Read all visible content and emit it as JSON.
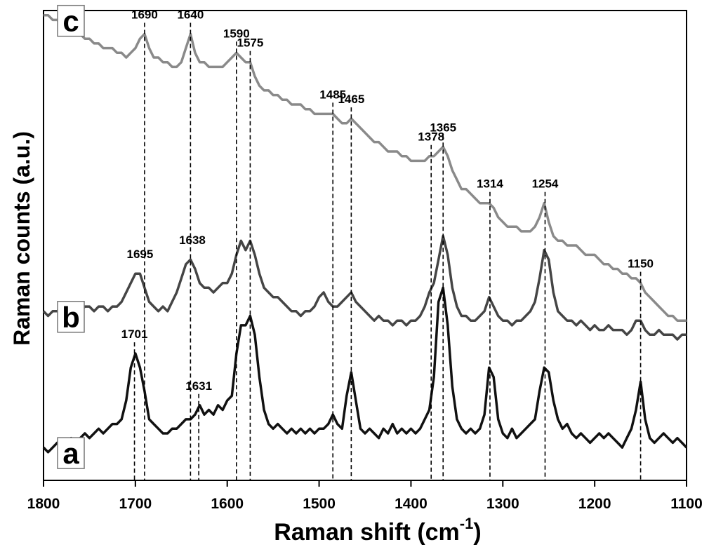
{
  "chart_data": {
    "type": "line",
    "x_label": {
      "text": "Raman shift (cm",
      "sup": "-1",
      "tail": ")"
    },
    "y_label": "Raman counts (a.u.)",
    "xlim": [
      1800,
      1100
    ],
    "xticks": [
      1800,
      1700,
      1600,
      1500,
      1400,
      1300,
      1200,
      1100
    ],
    "ylim": [
      0,
      100
    ],
    "x": [
      1800,
      1795,
      1790,
      1785,
      1780,
      1775,
      1770,
      1765,
      1760,
      1755,
      1750,
      1745,
      1740,
      1735,
      1730,
      1725,
      1720,
      1715,
      1710,
      1705,
      1700,
      1695,
      1690,
      1685,
      1680,
      1675,
      1670,
      1665,
      1660,
      1655,
      1650,
      1645,
      1640,
      1635,
      1630,
      1625,
      1620,
      1615,
      1610,
      1605,
      1600,
      1595,
      1590,
      1585,
      1580,
      1575,
      1570,
      1565,
      1560,
      1555,
      1550,
      1545,
      1540,
      1535,
      1530,
      1525,
      1520,
      1515,
      1510,
      1505,
      1500,
      1495,
      1490,
      1485,
      1480,
      1475,
      1470,
      1465,
      1460,
      1455,
      1450,
      1445,
      1440,
      1435,
      1430,
      1425,
      1420,
      1415,
      1410,
      1405,
      1400,
      1395,
      1390,
      1385,
      1380,
      1375,
      1370,
      1365,
      1360,
      1355,
      1350,
      1345,
      1340,
      1335,
      1330,
      1325,
      1320,
      1315,
      1310,
      1305,
      1300,
      1295,
      1290,
      1285,
      1280,
      1275,
      1270,
      1265,
      1260,
      1255,
      1250,
      1245,
      1240,
      1235,
      1230,
      1225,
      1220,
      1215,
      1210,
      1205,
      1200,
      1195,
      1190,
      1185,
      1180,
      1175,
      1170,
      1165,
      1160,
      1155,
      1150,
      1145,
      1140,
      1135,
      1130,
      1125,
      1120,
      1115,
      1110,
      1105,
      1100
    ],
    "series": [
      {
        "name": "a",
        "color": "#111111",
        "peaks": [
          1701,
          1631
        ],
        "values": [
          7,
          6,
          7,
          8,
          7,
          8,
          9,
          8,
          9,
          10,
          9,
          10,
          11,
          10,
          11,
          12,
          12,
          13,
          17,
          24,
          27,
          24,
          19,
          13,
          12,
          11,
          10,
          10,
          11,
          11,
          12,
          13,
          13,
          14,
          16,
          14,
          15,
          14,
          16,
          15,
          17,
          18,
          27,
          33,
          33,
          35,
          31,
          22,
          15,
          12,
          11,
          12,
          11,
          10,
          11,
          10,
          11,
          10,
          11,
          10,
          11,
          11,
          12,
          14,
          12,
          11,
          18,
          23,
          17,
          11,
          10,
          11,
          10,
          9,
          11,
          10,
          12,
          10,
          11,
          10,
          11,
          10,
          11,
          13,
          15,
          22,
          38,
          41,
          33,
          20,
          13,
          11,
          10,
          11,
          10,
          11,
          14,
          24,
          22,
          13,
          10,
          9,
          11,
          9,
          10,
          11,
          12,
          13,
          19,
          24,
          23,
          17,
          13,
          11,
          12,
          10,
          9,
          10,
          9,
          8,
          9,
          10,
          9,
          10,
          9,
          8,
          7,
          9,
          11,
          15,
          21,
          13,
          9,
          8,
          9,
          10,
          9,
          8,
          9,
          8,
          7
        ]
      },
      {
        "name": "b",
        "color": "#454545",
        "peaks": [
          1695,
          1638
        ],
        "values": [
          36,
          35,
          36,
          36,
          37,
          36,
          36,
          37,
          36,
          37,
          37,
          36,
          37,
          37,
          36,
          37,
          37,
          38,
          40,
          42,
          44,
          44,
          41,
          38,
          37,
          36,
          37,
          36,
          38,
          40,
          43,
          46,
          47,
          45,
          42,
          41,
          41,
          40,
          41,
          42,
          42,
          44,
          48,
          51,
          49,
          51,
          48,
          44,
          41,
          40,
          39,
          39,
          38,
          37,
          36,
          36,
          35,
          36,
          36,
          37,
          39,
          40,
          38,
          37,
          37,
          38,
          39,
          40,
          38,
          37,
          36,
          35,
          34,
          35,
          34,
          34,
          33,
          34,
          34,
          33,
          34,
          34,
          35,
          37,
          40,
          42,
          47,
          52,
          48,
          41,
          37,
          35,
          35,
          34,
          34,
          35,
          36,
          39,
          37,
          35,
          34,
          34,
          33,
          34,
          34,
          35,
          36,
          38,
          43,
          49,
          47,
          40,
          36,
          35,
          34,
          34,
          33,
          34,
          33,
          32,
          33,
          32,
          32,
          33,
          32,
          32,
          32,
          31,
          32,
          34,
          34,
          32,
          31,
          31,
          32,
          31,
          31,
          31,
          30,
          31,
          31
        ]
      },
      {
        "name": "c",
        "color": "#8a8a8a",
        "peaks": [
          1690,
          1640,
          1590,
          1575,
          1485,
          1465,
          1378,
          1365,
          1314,
          1254,
          1150
        ],
        "values": [
          99,
          99,
          98,
          98,
          97,
          96,
          96,
          95,
          95,
          94,
          94,
          93,
          93,
          92,
          92,
          92,
          91,
          91,
          90,
          91,
          92,
          94,
          95,
          92,
          90,
          90,
          89,
          89,
          88,
          88,
          89,
          92,
          95,
          91,
          89,
          89,
          88,
          88,
          88,
          88,
          89,
          90,
          91,
          90,
          89,
          89,
          86,
          84,
          83,
          83,
          82,
          82,
          81,
          81,
          80,
          80,
          80,
          79,
          79,
          78,
          78,
          78,
          78,
          78,
          77,
          76,
          76,
          77,
          76,
          75,
          74,
          73,
          72,
          72,
          71,
          70,
          70,
          70,
          69,
          69,
          68,
          68,
          68,
          68,
          69,
          69,
          70,
          71,
          69,
          66,
          64,
          62,
          62,
          61,
          60,
          59,
          59,
          59,
          58,
          56,
          55,
          54,
          54,
          54,
          53,
          53,
          53,
          54,
          56,
          59,
          55,
          52,
          51,
          51,
          50,
          50,
          50,
          49,
          48,
          48,
          48,
          47,
          46,
          46,
          45,
          45,
          44,
          44,
          43,
          43,
          42,
          40,
          39,
          38,
          37,
          36,
          35,
          35,
          34,
          34,
          34
        ]
      }
    ]
  }
}
